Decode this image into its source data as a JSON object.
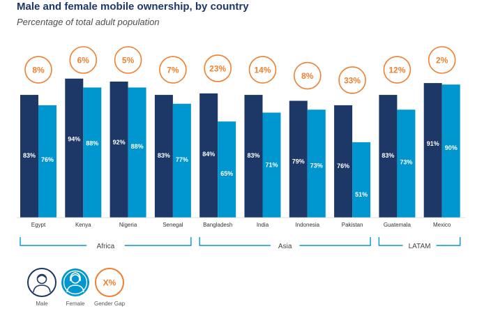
{
  "chart_data": {
    "type": "bar",
    "title": "Male and female mobile ownership, by country",
    "subtitle": "Percentage of total adult population",
    "categories": [
      "Egypt",
      "Kenya",
      "Nigeria",
      "Senegal",
      "Bangladesh",
      "India",
      "Indonesia",
      "Pakistan",
      "Guatemala",
      "Mexico"
    ],
    "series": [
      {
        "name": "Male",
        "values": [
          83,
          94,
          92,
          83,
          84,
          83,
          79,
          76,
          83,
          91
        ],
        "labels": [
          "83%",
          "94%",
          "92%",
          "83%",
          "84%",
          "83%",
          "79%",
          "76%",
          "83%",
          "91%"
        ]
      },
      {
        "name": "Female",
        "values": [
          76,
          88,
          88,
          77,
          65,
          71,
          73,
          51,
          73,
          90
        ],
        "labels": [
          "76%",
          "88%",
          "88%",
          "77%",
          "65%",
          "71%",
          "73%",
          "51%",
          "73%",
          "90%"
        ]
      }
    ],
    "gender_gap": [
      "8%",
      "6%",
      "5%",
      "7%",
      "23%",
      "14%",
      "8%",
      "33%",
      "12%",
      "2%"
    ],
    "regions": [
      {
        "name": "Africa",
        "categories": [
          "Egypt",
          "Kenya",
          "Nigeria",
          "Senegal"
        ]
      },
      {
        "name": "Asia",
        "categories": [
          "Bangladesh",
          "India",
          "Indonesia",
          "Pakistan"
        ]
      },
      {
        "name": "LATAM",
        "categories": [
          "Guatemala",
          "Mexico"
        ]
      }
    ],
    "ylim": [
      0,
      100
    ],
    "grid": false,
    "legend_position": "bottom-left",
    "colors": {
      "male": "#1d3767",
      "female": "#0097d0",
      "gap": "#f08030",
      "text": "#1d3767",
      "axis": "#0097d0"
    }
  },
  "legend": {
    "male_label": "Male",
    "female_label": "Female",
    "gap_label": "Gender Gap",
    "gap_symbol": "X%",
    "male_icon": "man-icon",
    "female_icon": "woman-icon"
  }
}
